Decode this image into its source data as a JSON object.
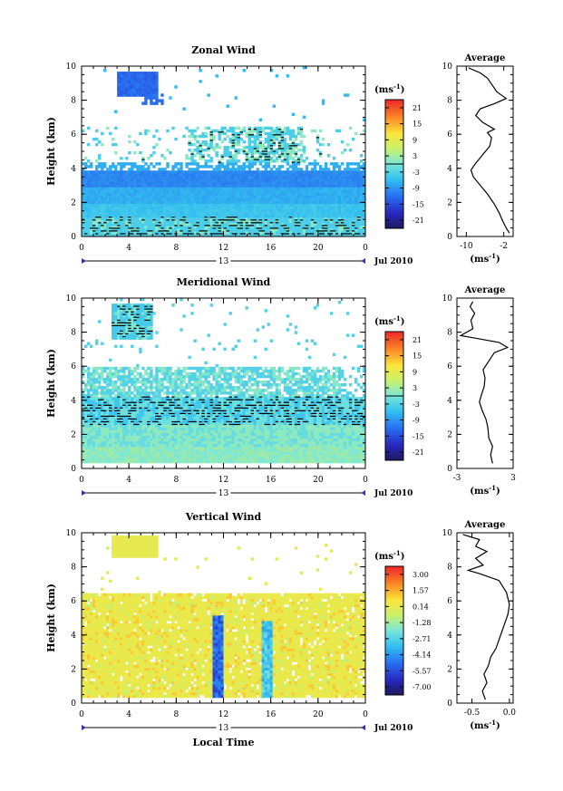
{
  "x_axis": {
    "ticks": [
      "0",
      "4",
      "8",
      "12",
      "16",
      "20",
      "0"
    ],
    "xlim": [
      0,
      24
    ],
    "date_marker": "13",
    "month_year": "Jul 2010",
    "xlabel": "Local Time"
  },
  "unit_label": "(ms",
  "unit_exp": "-1",
  "unit_close": ")",
  "chart_data": [
    {
      "type": "heatmap",
      "title": "Zonal Wind",
      "ylabel": "Height (km)",
      "ylim": [
        0,
        10
      ],
      "yticks": [
        "0",
        "2",
        "4",
        "6",
        "8",
        "10"
      ],
      "colorbar": {
        "ticks": [
          "21",
          "15",
          "9",
          "3",
          "-3",
          "-9",
          "-15",
          "-21"
        ],
        "range": [
          -24,
          24
        ]
      },
      "profile": {
        "type": "line",
        "title": "Average",
        "xticks": [
          "-10",
          "-2"
        ],
        "xlim": [
          -12,
          0
        ],
        "ylim": [
          0,
          10
        ],
        "yticks": [
          "0",
          "2",
          "4",
          "6",
          "8",
          "10"
        ],
        "points": [
          [
            -0.8,
            0.2
          ],
          [
            -1.5,
            0.5
          ],
          [
            -2.2,
            0.9
          ],
          [
            -3.0,
            1.4
          ],
          [
            -4.0,
            1.9
          ],
          [
            -5.5,
            2.5
          ],
          [
            -7.0,
            3.0
          ],
          [
            -8.5,
            3.5
          ],
          [
            -9.0,
            3.9
          ],
          [
            -8.0,
            4.3
          ],
          [
            -6.5,
            4.8
          ],
          [
            -5.0,
            5.3
          ],
          [
            -4.6,
            5.8
          ],
          [
            -5.5,
            6.1
          ],
          [
            -4.0,
            6.3
          ],
          [
            -6.5,
            6.7
          ],
          [
            -8.0,
            7.1
          ],
          [
            -7.0,
            7.5
          ],
          [
            -4.0,
            7.8
          ],
          [
            -1.5,
            8.1
          ],
          [
            -3.5,
            8.5
          ],
          [
            -4.5,
            8.9
          ],
          [
            -5.5,
            9.3
          ],
          [
            -7.0,
            9.6
          ],
          [
            -9.5,
            9.9
          ]
        ]
      }
    },
    {
      "type": "heatmap",
      "title": "Meridional Wind",
      "ylabel": "Height (km)",
      "ylim": [
        0,
        10
      ],
      "yticks": [
        "0",
        "2",
        "4",
        "6",
        "8",
        "10"
      ],
      "colorbar": {
        "ticks": [
          "21",
          "15",
          "9",
          "3",
          "-3",
          "-9",
          "-15",
          "-21"
        ],
        "range": [
          -24,
          24
        ]
      },
      "profile": {
        "type": "line",
        "title": "Average",
        "xticks": [
          "-3",
          "3"
        ],
        "xlim": [
          -3,
          3
        ],
        "ylim": [
          0,
          10
        ],
        "yticks": [
          "0",
          "2",
          "4",
          "6",
          "8",
          "10"
        ],
        "points": [
          [
            0.8,
            0.3
          ],
          [
            0.6,
            0.8
          ],
          [
            0.8,
            1.3
          ],
          [
            0.4,
            1.8
          ],
          [
            0.3,
            2.4
          ],
          [
            0.1,
            2.9
          ],
          [
            -0.3,
            3.4
          ],
          [
            -0.6,
            3.9
          ],
          [
            -0.4,
            4.3
          ],
          [
            -0.1,
            4.8
          ],
          [
            0.0,
            5.3
          ],
          [
            -0.2,
            5.8
          ],
          [
            0.4,
            6.3
          ],
          [
            1.0,
            6.8
          ],
          [
            2.4,
            7.1
          ],
          [
            1.5,
            7.4
          ],
          [
            -1.6,
            7.7
          ],
          [
            -2.6,
            7.8
          ],
          [
            -1.3,
            8.2
          ],
          [
            -1.5,
            8.7
          ],
          [
            -1.1,
            9.1
          ],
          [
            -1.6,
            9.5
          ],
          [
            -1.3,
            9.8
          ]
        ]
      }
    },
    {
      "type": "heatmap",
      "title": "Vertical Wind",
      "ylabel": "Height (km)",
      "ylim": [
        0,
        10
      ],
      "yticks": [
        "0",
        "2",
        "4",
        "6",
        "8",
        "10"
      ],
      "colorbar": {
        "ticks": [
          "3.00",
          "1.57",
          "0.14",
          "-1.28",
          "-2.71",
          "-4.14",
          "-5.57",
          "-7.00"
        ],
        "range": [
          -7.7,
          3.7
        ]
      },
      "profile": {
        "type": "line",
        "title": "Average",
        "xticks": [
          "-0.5",
          "0.0"
        ],
        "xlim": [
          -0.7,
          0.05
        ],
        "ylim": [
          0,
          10
        ],
        "yticks": [
          "0",
          "2",
          "4",
          "6",
          "8",
          "10"
        ],
        "points": [
          [
            -0.32,
            0.2
          ],
          [
            -0.36,
            0.7
          ],
          [
            -0.3,
            1.2
          ],
          [
            -0.34,
            1.7
          ],
          [
            -0.28,
            2.2
          ],
          [
            -0.25,
            2.7
          ],
          [
            -0.18,
            3.2
          ],
          [
            -0.14,
            3.7
          ],
          [
            -0.1,
            4.2
          ],
          [
            -0.06,
            4.7
          ],
          [
            -0.02,
            5.2
          ],
          [
            0.0,
            5.8
          ],
          [
            -0.04,
            6.5
          ],
          [
            -0.14,
            7.2
          ],
          [
            -0.4,
            7.6
          ],
          [
            -0.55,
            7.8
          ],
          [
            -0.35,
            8.1
          ],
          [
            -0.45,
            8.5
          ],
          [
            -0.3,
            8.9
          ],
          [
            -0.45,
            9.2
          ],
          [
            -0.4,
            9.6
          ],
          [
            -0.62,
            9.9
          ]
        ]
      }
    }
  ]
}
